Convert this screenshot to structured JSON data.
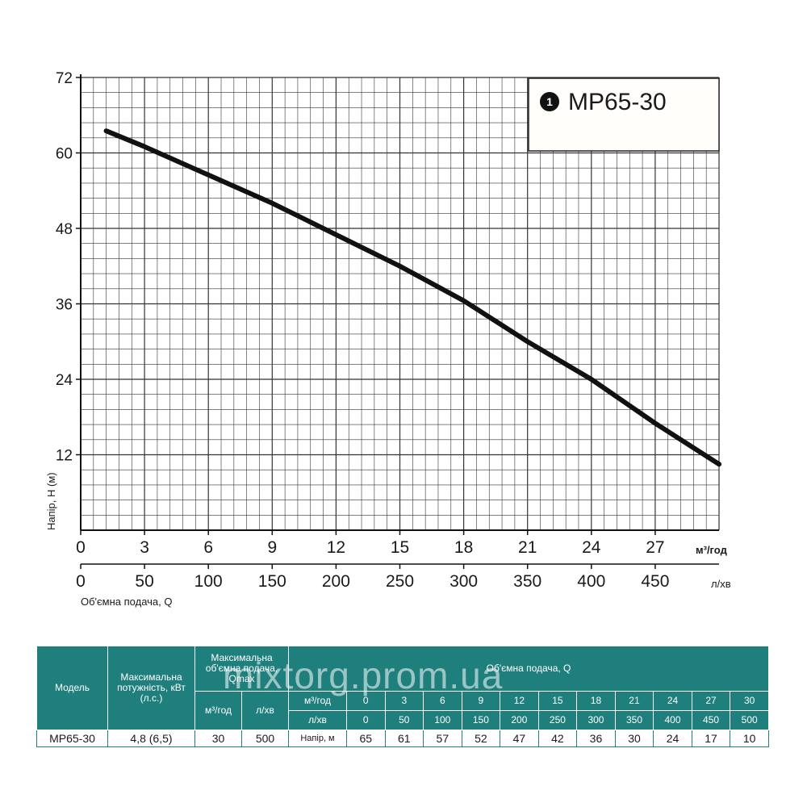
{
  "chart_data": {
    "type": "line",
    "title": "MP65-30",
    "legend_marker": "1",
    "ylabel": "Напір, Н (м)",
    "xlabel": "Об'ємна подача, Q",
    "ylim": [
      0,
      72
    ],
    "yticks": [
      12,
      24,
      36,
      48,
      60,
      72
    ],
    "xlim": [
      0,
      30
    ],
    "xticks_m3h": [
      0,
      3,
      6,
      9,
      12,
      15,
      18,
      21,
      24,
      27
    ],
    "xunit_m3h": "м³/год",
    "xticks_lmin": [
      0,
      50,
      100,
      150,
      200,
      250,
      300,
      350,
      400,
      450
    ],
    "xunit_lmin": "л/хв",
    "series": [
      {
        "name": "MP65-30",
        "x": [
          1.2,
          3,
          6,
          9,
          12,
          15,
          18,
          21,
          24,
          27,
          30
        ],
        "y": [
          63.5,
          61,
          56.5,
          52,
          47,
          42,
          36.5,
          30,
          24,
          17,
          10.5
        ]
      }
    ]
  },
  "table": {
    "headers": {
      "model": "Модель",
      "power": "Максимальна потужність, кВт (л.с.)",
      "qmax": "Максимальна об'ємна подача, Qmax",
      "flow": "Об'ємна подача, Q",
      "m3h": "м³/год",
      "lmin": "л/хв",
      "row_m3h": "м³/год",
      "row_lmin": "л/хв"
    },
    "flow_m3h": [
      "0",
      "3",
      "6",
      "9",
      "12",
      "15",
      "18",
      "21",
      "24",
      "27",
      "30"
    ],
    "flow_lmin": [
      "0",
      "50",
      "100",
      "150",
      "200",
      "250",
      "300",
      "350",
      "400",
      "450",
      "500"
    ],
    "row": {
      "model": "MP65-30",
      "power": "4,8 (6,5)",
      "qmax_m3h": "30",
      "qmax_lmin": "500",
      "head_label": "Напір, м",
      "heads": [
        "65",
        "61",
        "57",
        "52",
        "47",
        "42",
        "36",
        "30",
        "24",
        "17",
        "10"
      ]
    }
  },
  "watermark": "mixtorg.prom.ua"
}
